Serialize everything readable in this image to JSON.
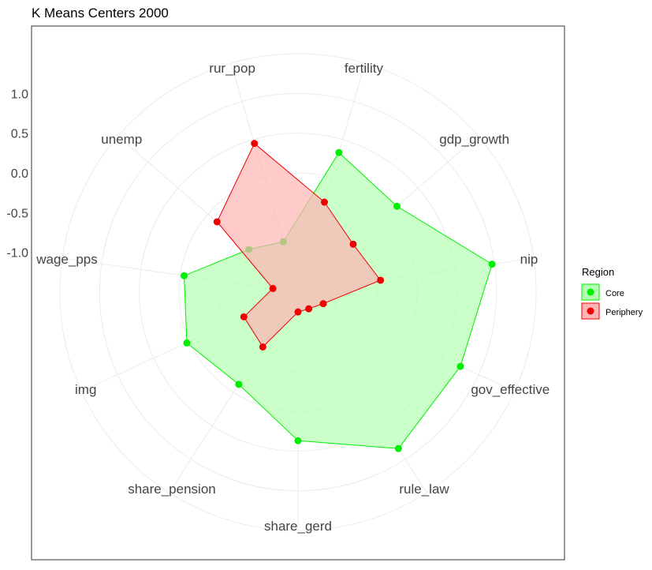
{
  "chart_data": {
    "type": "radar",
    "title": "K Means Centers 2000",
    "axes": [
      "fertility",
      "gdp_growth",
      "nip",
      "gov_effective",
      "rule_law",
      "share_gerd",
      "share_pension",
      "img",
      "wage_pps",
      "unemp",
      "rur_pop"
    ],
    "r_ticks": [
      "1.0",
      "0.5",
      "0.0",
      "-0.5",
      "-1.0"
    ],
    "r_tick_values": [
      1.0,
      0.5,
      0.0,
      -0.5,
      -1.0
    ],
    "rlim": [
      -1.5,
      1.5
    ],
    "grid": true,
    "legend": {
      "title": "Region",
      "position": "right"
    },
    "series": [
      {
        "name": "Core",
        "color": "#00ee00",
        "fill": "#b3ffb3",
        "values": [
          0.33,
          0.15,
          0.97,
          0.75,
          0.84,
          0.37,
          -0.12,
          0.04,
          -0.05,
          -0.68,
          -0.84
        ]
      },
      {
        "name": "Periphery",
        "color": "#ee0000",
        "fill": "#ffb3b3",
        "values": [
          -0.32,
          -0.58,
          -0.45,
          -1.15,
          -1.25,
          -1.25,
          -0.68,
          -0.75,
          -1.18,
          -0.15,
          0.45
        ]
      }
    ]
  }
}
